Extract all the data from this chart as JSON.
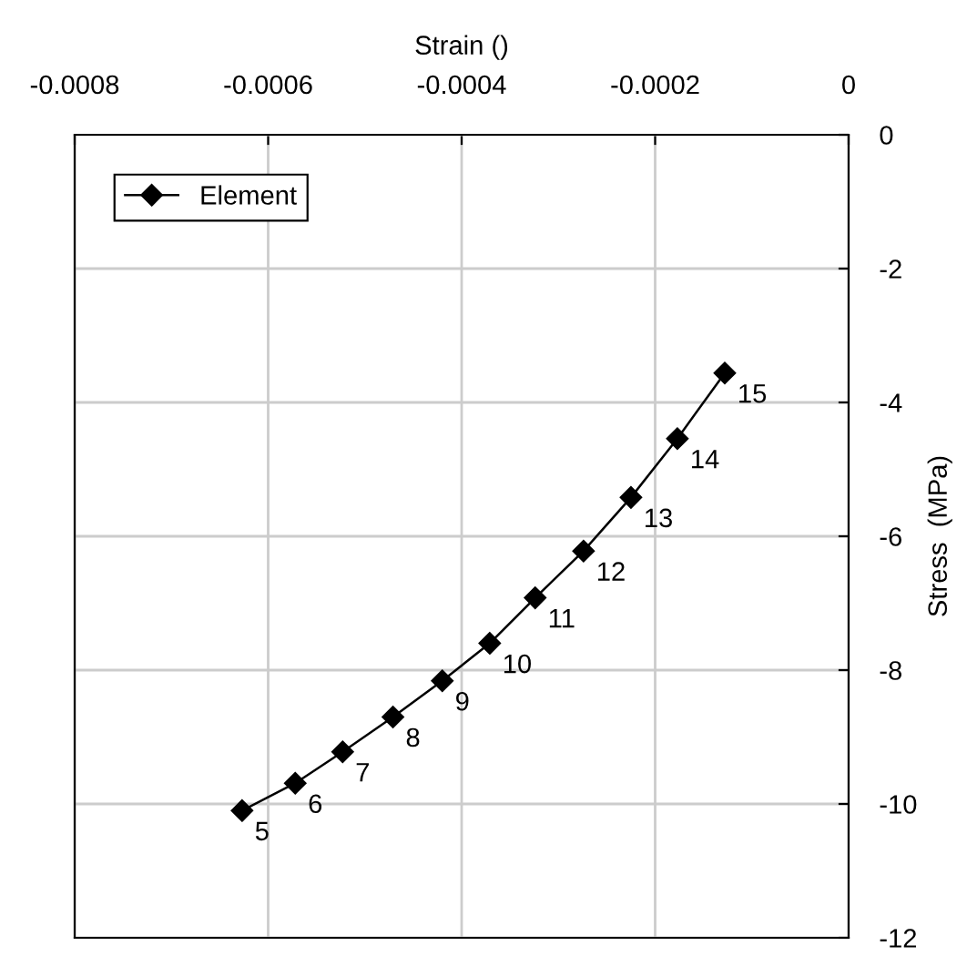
{
  "chart_data": {
    "type": "line",
    "xlabel": "Strain ()",
    "ylabel": "Stress  (MPa)",
    "x": [
      -0.000627,
      -0.000572,
      -0.000523,
      -0.000471,
      -0.00042,
      -0.000371,
      -0.000324,
      -0.000274,
      -0.000225,
      -0.000177,
      -0.000128
    ],
    "series": [
      {
        "name": "Element",
        "color": "#000000",
        "values": [
          -10.1,
          -9.69,
          -9.22,
          -8.7,
          -8.16,
          -7.6,
          -6.92,
          -6.22,
          -5.42,
          -4.54,
          -3.56
        ]
      }
    ],
    "annotations": [
      {
        "text": "5",
        "x": -0.000627,
        "y": -10.1
      },
      {
        "text": "6",
        "x": -0.000572,
        "y": -9.69
      },
      {
        "text": "7",
        "x": -0.000523,
        "y": -9.22
      },
      {
        "text": "8",
        "x": -0.000471,
        "y": -8.7
      },
      {
        "text": "9",
        "x": -0.00042,
        "y": -8.16
      },
      {
        "text": "10",
        "x": -0.000371,
        "y": -7.6
      },
      {
        "text": "11",
        "x": -0.000324,
        "y": -6.92
      },
      {
        "text": "12",
        "x": -0.000274,
        "y": -6.22
      },
      {
        "text": "13",
        "x": -0.000225,
        "y": -5.42
      },
      {
        "text": "14",
        "x": -0.000177,
        "y": -4.54
      },
      {
        "text": "15",
        "x": -0.000128,
        "y": -3.56
      }
    ],
    "xlim": [
      -0.0008,
      0
    ],
    "xticks": [
      -0.0008,
      -0.0006,
      -0.0004,
      -0.0002,
      0
    ],
    "ylim": [
      -12,
      0
    ],
    "yticks": [
      -12,
      -10,
      -8,
      -6,
      -4,
      -2,
      0
    ],
    "grid": true,
    "legend": "top left",
    "marker": "diamond",
    "line_style": "solid"
  }
}
